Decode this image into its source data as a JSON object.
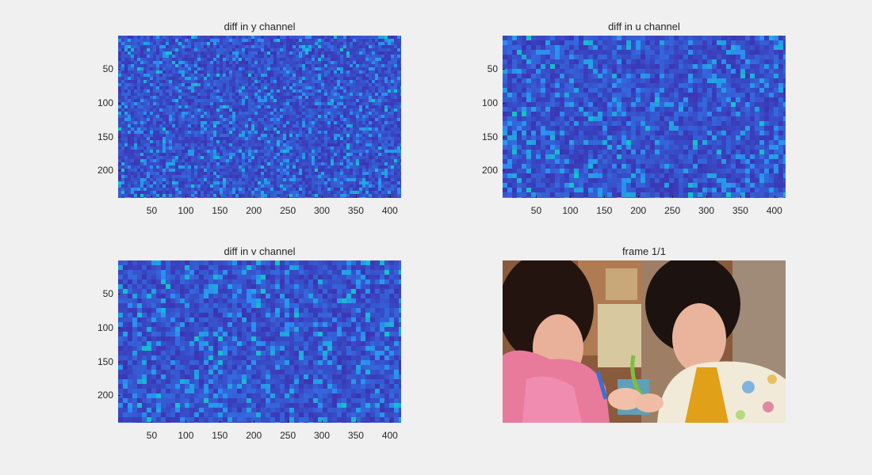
{
  "figure": {
    "background": "#f0f0f0",
    "colormap": "parula"
  },
  "chart_data": [
    {
      "type": "heatmap",
      "title": "diff in y channel",
      "xlabel": "",
      "ylabel": "",
      "xlim": [
        0.5,
        416.5
      ],
      "ylim": [
        0.5,
        240.5
      ],
      "y_direction": "reverse",
      "xticks": [
        50,
        100,
        150,
        200,
        250,
        300,
        350,
        400
      ],
      "yticks": [
        50,
        100,
        150,
        200
      ],
      "grid": false,
      "legend": "none",
      "colors": {
        "low": "#3e26a8",
        "mid": "#2e87f7",
        "high": "#12c7c2"
      }
    },
    {
      "type": "heatmap",
      "title": "diff in u channel",
      "xlabel": "",
      "ylabel": "",
      "xlim": [
        0.5,
        416.5
      ],
      "ylim": [
        0.5,
        240.5
      ],
      "y_direction": "reverse",
      "xticks": [
        50,
        100,
        150,
        200,
        250,
        300,
        350,
        400
      ],
      "yticks": [
        50,
        100,
        150,
        200
      ],
      "grid": false,
      "legend": "none",
      "colors": {
        "low": "#3e26a8",
        "mid": "#2e87f7",
        "high": "#12c7c2"
      }
    },
    {
      "type": "heatmap",
      "title": "diff in v channel",
      "xlabel": "",
      "ylabel": "",
      "xlim": [
        0.5,
        416.5
      ],
      "ylim": [
        0.5,
        240.5
      ],
      "y_direction": "reverse",
      "xticks": [
        50,
        100,
        150,
        200,
        250,
        300,
        350,
        400
      ],
      "yticks": [
        50,
        100,
        150,
        200
      ],
      "grid": false,
      "legend": "none",
      "colors": {
        "low": "#3e26a8",
        "mid": "#2e87f7",
        "high": "#12c7c2"
      }
    },
    {
      "type": "image",
      "title": "frame 1/1",
      "xticks": [],
      "yticks": []
    }
  ]
}
